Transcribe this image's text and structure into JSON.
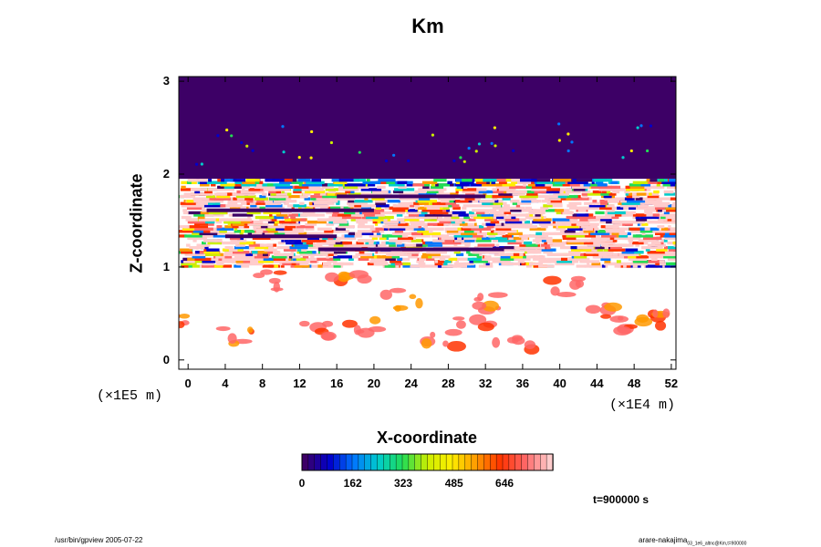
{
  "chart_data": {
    "type": "heatmap",
    "title": "Km",
    "xlabel": "X-coordinate",
    "ylabel": "Z-coordinate",
    "x_unit": "(×1E4 m)",
    "z_unit": "(×1E5 m)",
    "xlim": [
      -1,
      52.5
    ],
    "ylim": [
      -0.1,
      3.05
    ],
    "x_ticks": [
      "0",
      "4",
      "8",
      "12",
      "16",
      "20",
      "24",
      "28",
      "32",
      "36",
      "40",
      "44",
      "48",
      "52"
    ],
    "y_ticks": [
      "0",
      "1",
      "2",
      "3"
    ],
    "colorbar": {
      "range": [
        0,
        800
      ],
      "tick_labels": [
        "0",
        "162",
        "323",
        "485",
        "646"
      ],
      "colors_low_to_high": [
        "#3d0066",
        "#0000cc",
        "#0077ff",
        "#00cccc",
        "#22dd55",
        "#ccee00",
        "#ffee00",
        "#ff9900",
        "#ff3300",
        "#ff6666",
        "#ffcccc"
      ]
    },
    "bands": [
      {
        "z_range": [
          1.95,
          3.0
        ],
        "description_level": "0"
      },
      {
        "z_range": [
          1.0,
          1.95
        ],
        "description_level": "mixed 0-800"
      },
      {
        "z_range": [
          0.0,
          1.0
        ],
        "description_level": "sparse high values"
      }
    ],
    "time_label": "t=900000 s"
  },
  "footer": {
    "left": "/usr/bin/gpview 2005-07-22",
    "right": "arare-nakajima",
    "right_sub": "03_1e6_altnc@Km,t=900000"
  }
}
